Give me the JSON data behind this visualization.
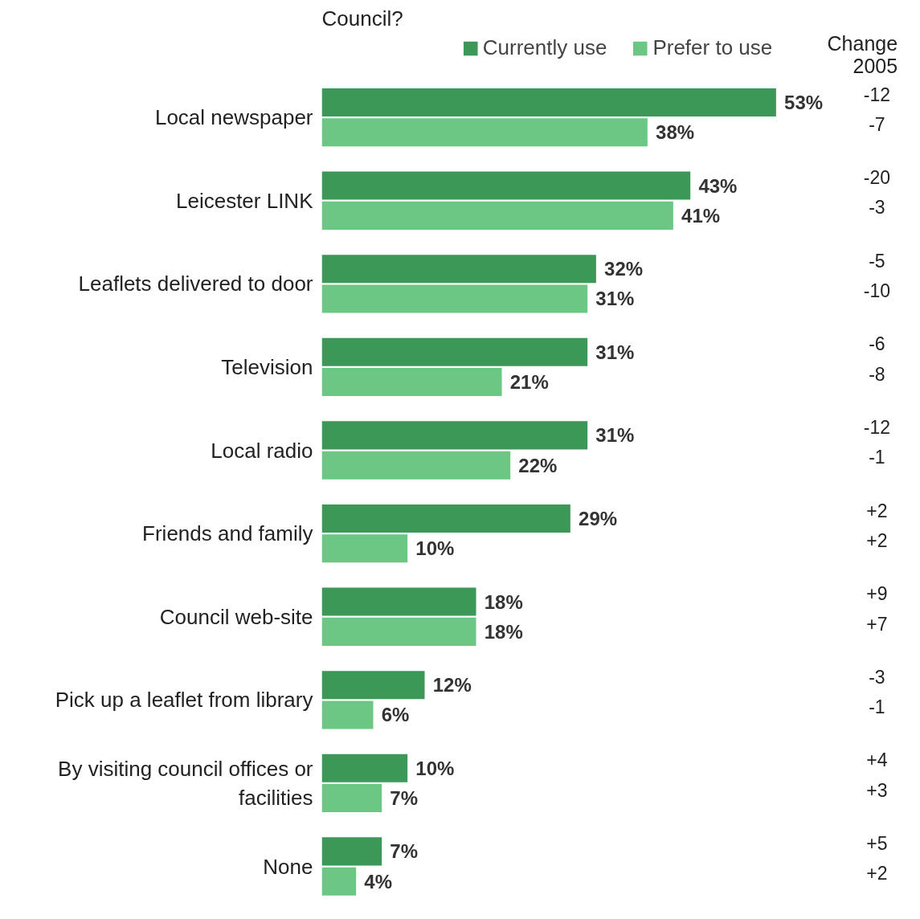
{
  "chart_data": {
    "type": "bar",
    "orientation": "horizontal",
    "title": "Council?",
    "categories": [
      "Local newspaper",
      "Leicester LINK",
      "Leaflets delivered to door",
      "Television",
      "Local radio",
      "Friends and family",
      "Council web-site",
      "Pick up a leaflet from library",
      "By visiting council offices or facilities",
      "None"
    ],
    "series": [
      {
        "name": "Currently use",
        "color": "#3b9856",
        "values": [
          53,
          43,
          32,
          31,
          31,
          29,
          18,
          12,
          10,
          7
        ],
        "value_labels": [
          "53%",
          "43%",
          "32%",
          "31%",
          "31%",
          "29%",
          "18%",
          "12%",
          "10%",
          "7%"
        ]
      },
      {
        "name": "Prefer to use",
        "color": "#6cc785",
        "values": [
          38,
          41,
          31,
          21,
          22,
          10,
          18,
          6,
          7,
          4
        ],
        "value_labels": [
          "38%",
          "41%",
          "31%",
          "21%",
          "22%",
          "10%",
          "18%",
          "6%",
          "7%",
          "4%"
        ]
      }
    ],
    "legend": "top",
    "annotations": [
      "Change\n2005",
      "-12",
      "-7",
      "-20",
      "-3",
      "-5",
      "-10",
      "-6",
      "-8",
      "-12",
      "-1",
      "+2",
      "+2",
      "+9",
      "+7",
      "-3",
      "-1",
      "+4",
      "+3",
      "+5",
      "+2"
    ]
  }
}
